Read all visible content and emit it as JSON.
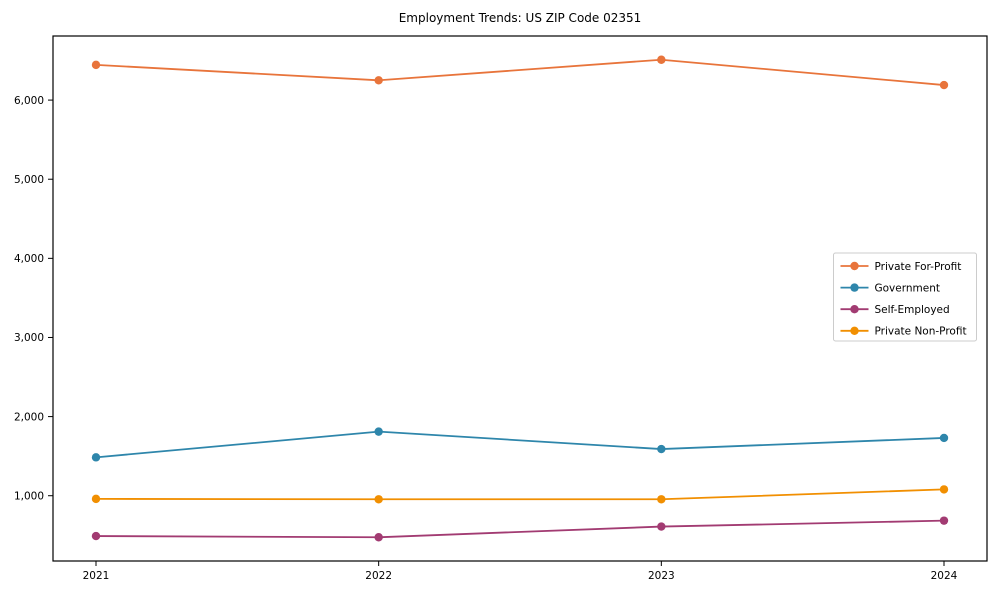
{
  "chart_data": {
    "type": "line",
    "title": "Employment Trends: US ZIP Code 02351",
    "xlabel": "",
    "ylabel": "",
    "categories": [
      "2021",
      "2022",
      "2023",
      "2024"
    ],
    "series": [
      {
        "name": "Private For-Profit",
        "color": "#E8743B",
        "values": [
          6445,
          6250,
          6510,
          6190
        ]
      },
      {
        "name": "Government",
        "color": "#2E86AB",
        "values": [
          1485,
          1810,
          1590,
          1730
        ]
      },
      {
        "name": "Self-Employed",
        "color": "#A23B72",
        "values": [
          490,
          475,
          610,
          685
        ]
      },
      {
        "name": "Private Non-Profit",
        "color": "#F18F01",
        "values": [
          960,
          955,
          955,
          1080
        ]
      }
    ],
    "y_ticks": [
      {
        "value": 1000,
        "label": "1,000"
      },
      {
        "value": 2000,
        "label": "2,000"
      },
      {
        "value": 3000,
        "label": "3,000"
      },
      {
        "value": 4000,
        "label": "4,000"
      },
      {
        "value": 5000,
        "label": "5,000"
      },
      {
        "value": 6000,
        "label": "6,000"
      }
    ],
    "ylim": [
      175,
      6810
    ],
    "grid": false,
    "marker": "circle",
    "legend_position": "center right",
    "frame_color": "#000000",
    "legend_border_color": "#cccccc",
    "legend_background": "#ffffff"
  }
}
